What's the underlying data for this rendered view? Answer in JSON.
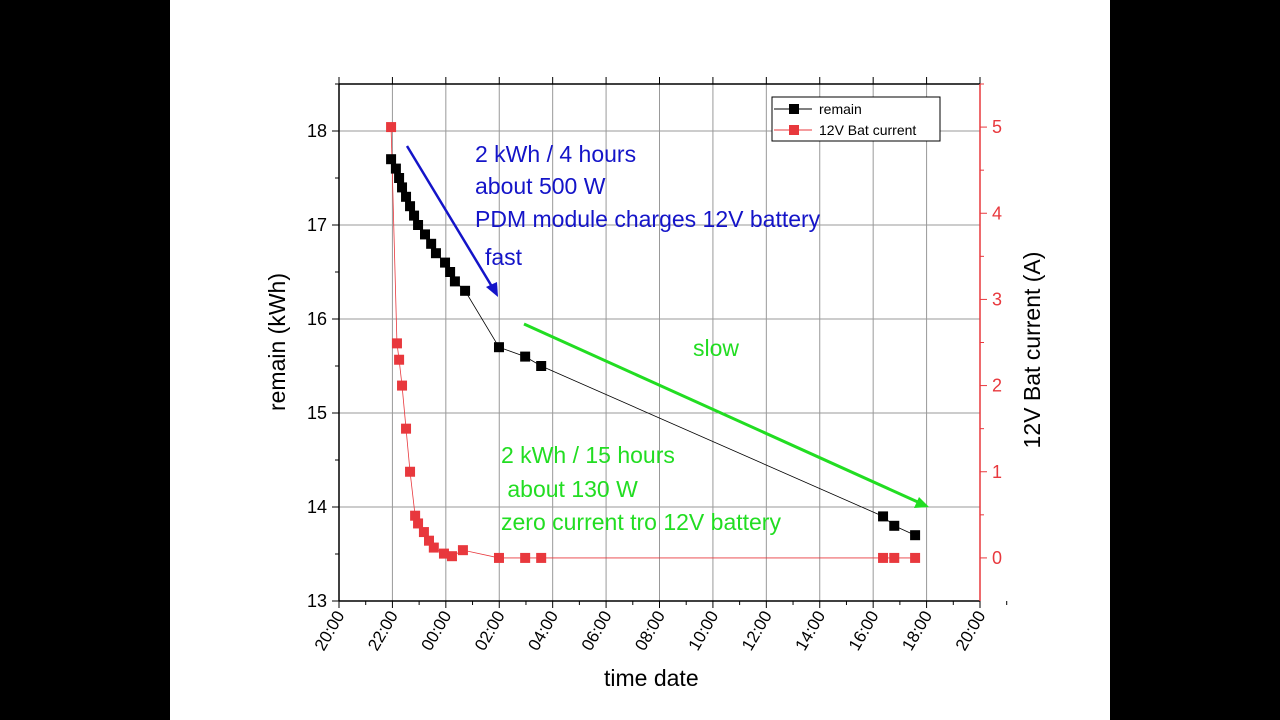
{
  "chart_data": {
    "type": "line",
    "xlabel": "time date",
    "ylabel": "remain (kWh)",
    "y2label": "12V Bat current (A)",
    "x_unit": "clock hours from 20:00 day 1 (values >24 are next day)",
    "xlim": [
      20,
      44
    ],
    "ylim": [
      13,
      18.5
    ],
    "y2lim": [
      -0.5,
      5.5
    ],
    "x_ticks": [
      20,
      22,
      24,
      26,
      28,
      30,
      32,
      34,
      36,
      38,
      40,
      42,
      44
    ],
    "x_tick_labels": [
      "20:00",
      "22:00",
      "00:00",
      "02:00",
      "04:00",
      "06:00",
      "08:00",
      "10:00",
      "12:00",
      "14:00",
      "16:00",
      "18:00",
      "20:00"
    ],
    "y_ticks": [
      13,
      14,
      15,
      16,
      17,
      18
    ],
    "y_tick_labels": [
      "13",
      "14",
      "15",
      "16",
      "17",
      "18"
    ],
    "y2_ticks": [
      0,
      1,
      2,
      3,
      4,
      5
    ],
    "y2_tick_labels": [
      "0",
      "1",
      "2",
      "3",
      "4",
      "5"
    ],
    "grid": true,
    "legend_position": "top-right",
    "series": [
      {
        "name": "remain",
        "axis": "left",
        "color": "#000000",
        "x": [
          21.95,
          22.13,
          22.25,
          22.36,
          22.51,
          22.66,
          22.81,
          22.96,
          23.22,
          23.45,
          23.63,
          23.97,
          24.16,
          24.34,
          24.72,
          25.99,
          26.97,
          27.57,
          40.37,
          40.79,
          41.57
        ],
        "y": [
          17.7,
          17.6,
          17.5,
          17.4,
          17.3,
          17.2,
          17.1,
          17.0,
          16.9,
          16.8,
          16.7,
          16.6,
          16.5,
          16.4,
          16.3,
          15.7,
          15.6,
          15.5,
          13.9,
          13.8,
          13.7
        ]
      },
      {
        "name": "12V Bat current",
        "axis": "right",
        "color": "#e8383d",
        "x": [
          21.95,
          22.17,
          22.25,
          22.36,
          22.51,
          22.66,
          22.85,
          22.96,
          23.18,
          23.37,
          23.55,
          23.93,
          24.23,
          24.64,
          25.99,
          26.97,
          27.57,
          40.37,
          40.79,
          41.57
        ],
        "y": [
          5.0,
          2.49,
          2.3,
          2.0,
          1.5,
          1.0,
          0.49,
          0.4,
          0.3,
          0.2,
          0.12,
          0.05,
          0.02,
          0.09,
          0,
          0,
          0,
          0,
          0,
          0
        ]
      }
    ],
    "annotations": {
      "fast_text": [
        "2 kWh / 4 hours",
        "about 500 W",
        "PDM module charges 12V battery"
      ],
      "fast_label": "fast",
      "slow_label": "slow",
      "slow_text": [
        "2 kWh / 15 hours",
        " about 130 W",
        "zero current tro 12V battery"
      ],
      "fast_color": "#1414c8",
      "slow_color": "#22dd22"
    }
  }
}
